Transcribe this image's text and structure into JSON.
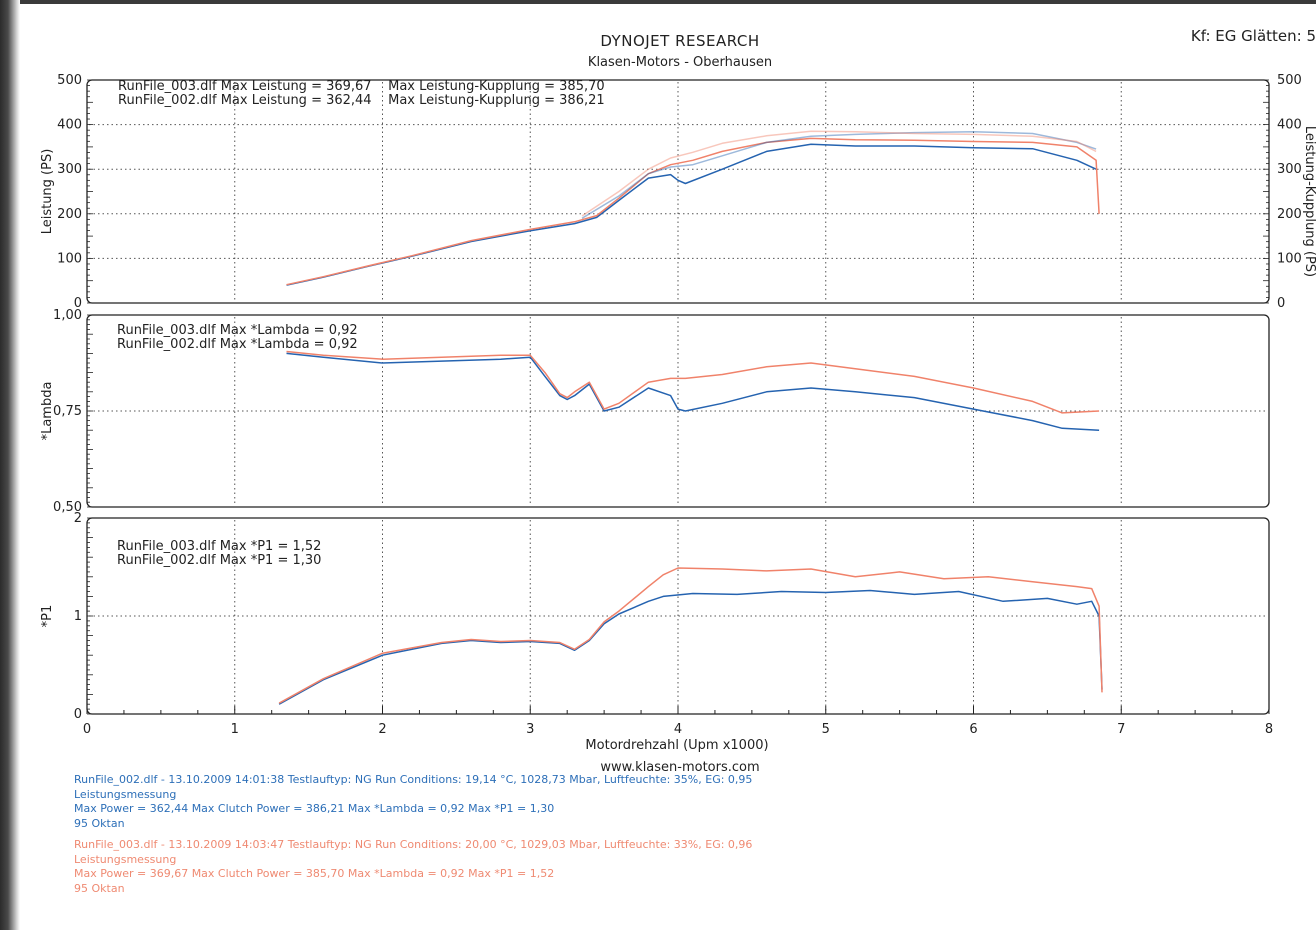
{
  "header": {
    "title": "DYNOJET RESEARCH",
    "subtitle": "Klasen-Motors - Oberhausen",
    "corner_label": "Kf: EG  Glätten: 5"
  },
  "website": "www.klasen-motors.com",
  "colors": {
    "run_002": "#2563b0",
    "run_003": "#f0826a",
    "grid": "#555555",
    "axis": "#222222"
  },
  "chart_data": [
    {
      "type": "line",
      "id": "power",
      "ylabel": "Leistung (PS)",
      "ylabel_right": "Leistung-Kupplung (PS)",
      "xlim": [
        0,
        8
      ],
      "ylim": [
        0,
        500
      ],
      "yticks": [
        {
          "v": 0,
          "label": "0"
        },
        {
          "v": 100,
          "label": "100"
        },
        {
          "v": 200,
          "label": "200"
        },
        {
          "v": 300,
          "label": "300"
        },
        {
          "v": 400,
          "label": "400"
        },
        {
          "v": 500,
          "label": "500"
        }
      ],
      "grid": true,
      "legend": [
        "RunFile_003.dlf Max Leistung = 369,67    Max Leistung-Kupplung = 385,70",
        "RunFile_002.dlf Max Leistung = 362,44    Max Leistung-Kupplung = 386,21"
      ],
      "series": [
        {
          "run": "002",
          "kind": "power",
          "color": "#2563b0",
          "x": [
            1.35,
            1.6,
            1.9,
            2.2,
            2.6,
            3.0,
            3.3,
            3.45,
            3.6,
            3.8,
            3.95,
            4.0,
            4.05,
            4.3,
            4.6,
            4.9,
            5.2,
            5.6,
            6.0,
            6.4,
            6.7,
            6.83
          ],
          "y": [
            40,
            58,
            82,
            105,
            138,
            162,
            178,
            192,
            230,
            280,
            288,
            275,
            268,
            300,
            340,
            356,
            352,
            352,
            348,
            346,
            320,
            300
          ]
        },
        {
          "run": "003",
          "kind": "power",
          "color": "#f0826a",
          "x": [
            1.35,
            1.6,
            1.9,
            2.2,
            2.6,
            3.0,
            3.3,
            3.45,
            3.6,
            3.8,
            3.95,
            4.1,
            4.3,
            4.6,
            4.9,
            5.2,
            5.6,
            6.0,
            6.4,
            6.7,
            6.83,
            6.85
          ],
          "y": [
            41,
            59,
            83,
            106,
            140,
            165,
            182,
            196,
            235,
            290,
            310,
            320,
            340,
            360,
            369,
            366,
            365,
            362,
            360,
            350,
            320,
            200
          ]
        },
        {
          "run": "002",
          "kind": "clutch",
          "color": "#2563b0",
          "opacity": 0.45,
          "x": [
            3.35,
            3.6,
            3.8,
            3.95,
            4.1,
            4.3,
            4.6,
            4.9,
            5.2,
            5.6,
            6.0,
            6.4,
            6.7,
            6.83
          ],
          "y": [
            190,
            240,
            290,
            305,
            310,
            330,
            360,
            374,
            378,
            382,
            384,
            380,
            360,
            345
          ]
        },
        {
          "run": "003",
          "kind": "clutch",
          "color": "#f0826a",
          "opacity": 0.45,
          "x": [
            3.35,
            3.6,
            3.8,
            3.95,
            4.1,
            4.3,
            4.6,
            4.9,
            5.2,
            5.6,
            6.0,
            6.4,
            6.7,
            6.83
          ],
          "y": [
            195,
            250,
            300,
            325,
            338,
            358,
            375,
            385,
            384,
            380,
            378,
            374,
            362,
            340
          ]
        }
      ]
    },
    {
      "type": "line",
      "id": "lambda",
      "ylabel": "*Lambda",
      "xlim": [
        0,
        8
      ],
      "ylim": [
        0.5,
        1.0
      ],
      "yticks": [
        {
          "v": 0.5,
          "label": "0,50"
        },
        {
          "v": 0.75,
          "label": "0,75"
        },
        {
          "v": 1.0,
          "label": "1,00"
        }
      ],
      "grid": true,
      "legend": [
        "RunFile_003.dlf Max *Lambda = 0,92",
        "RunFile_002.dlf Max *Lambda = 0,92"
      ],
      "series": [
        {
          "run": "002",
          "color": "#2563b0",
          "x": [
            1.35,
            1.6,
            2.0,
            2.4,
            2.8,
            3.0,
            3.1,
            3.2,
            3.25,
            3.3,
            3.4,
            3.5,
            3.6,
            3.8,
            3.95,
            4.0,
            4.05,
            4.3,
            4.6,
            4.9,
            5.2,
            5.6,
            6.0,
            6.4,
            6.6,
            6.85
          ],
          "y": [
            0.9,
            0.89,
            0.875,
            0.88,
            0.885,
            0.89,
            0.84,
            0.79,
            0.78,
            0.79,
            0.82,
            0.75,
            0.76,
            0.81,
            0.79,
            0.755,
            0.75,
            0.77,
            0.8,
            0.81,
            0.8,
            0.785,
            0.755,
            0.725,
            0.705,
            0.7
          ]
        },
        {
          "run": "003",
          "color": "#f0826a",
          "x": [
            1.35,
            1.6,
            2.0,
            2.4,
            2.8,
            3.0,
            3.1,
            3.2,
            3.25,
            3.3,
            3.4,
            3.5,
            3.6,
            3.8,
            3.95,
            4.05,
            4.3,
            4.6,
            4.9,
            5.2,
            5.6,
            6.0,
            6.4,
            6.6,
            6.85
          ],
          "y": [
            0.905,
            0.895,
            0.885,
            0.89,
            0.895,
            0.895,
            0.85,
            0.795,
            0.785,
            0.8,
            0.825,
            0.755,
            0.77,
            0.825,
            0.835,
            0.835,
            0.845,
            0.865,
            0.875,
            0.86,
            0.84,
            0.81,
            0.775,
            0.745,
            0.75
          ]
        }
      ]
    },
    {
      "type": "line",
      "id": "p1",
      "ylabel": "*P1",
      "xlabel": "Motordrehzahl (Upm x1000)",
      "xlim": [
        0,
        8
      ],
      "ylim": [
        0,
        2
      ],
      "xticks": [
        0,
        1,
        2,
        3,
        4,
        5,
        6,
        7,
        8
      ],
      "yticks": [
        {
          "v": 0,
          "label": "0"
        },
        {
          "v": 1,
          "label": "1"
        },
        {
          "v": 2,
          "label": "2"
        }
      ],
      "grid": true,
      "legend": [
        "RunFile_003.dlf Max *P1 = 1,52",
        "RunFile_002.dlf Max *P1 = 1,30"
      ],
      "series": [
        {
          "run": "002",
          "color": "#2563b0",
          "x": [
            1.3,
            1.6,
            2.0,
            2.4,
            2.6,
            2.8,
            3.0,
            3.2,
            3.3,
            3.4,
            3.5,
            3.6,
            3.8,
            3.9,
            4.1,
            4.4,
            4.7,
            5.0,
            5.3,
            5.6,
            5.9,
            6.2,
            6.5,
            6.7,
            6.8,
            6.85,
            6.87
          ],
          "y": [
            0.1,
            0.35,
            0.6,
            0.72,
            0.75,
            0.73,
            0.74,
            0.72,
            0.65,
            0.75,
            0.92,
            1.02,
            1.15,
            1.2,
            1.23,
            1.22,
            1.25,
            1.24,
            1.26,
            1.22,
            1.25,
            1.15,
            1.18,
            1.12,
            1.15,
            1.0,
            0.25
          ]
        },
        {
          "run": "003",
          "color": "#f0826a",
          "x": [
            1.3,
            1.6,
            2.0,
            2.4,
            2.6,
            2.8,
            3.0,
            3.2,
            3.3,
            3.4,
            3.5,
            3.6,
            3.8,
            3.9,
            4.0,
            4.3,
            4.6,
            4.9,
            5.2,
            5.5,
            5.8,
            6.1,
            6.4,
            6.7,
            6.8,
            6.85,
            6.87
          ],
          "y": [
            0.11,
            0.36,
            0.62,
            0.73,
            0.76,
            0.74,
            0.75,
            0.73,
            0.66,
            0.76,
            0.94,
            1.05,
            1.3,
            1.42,
            1.49,
            1.48,
            1.46,
            1.48,
            1.4,
            1.45,
            1.38,
            1.4,
            1.35,
            1.3,
            1.28,
            1.1,
            0.22
          ]
        }
      ]
    }
  ],
  "footer": {
    "run_002": [
      "RunFile_002.dlf - 13.10.2009 14:01:38  Testlauftyp: NG  Run Conditions: 19,14 °C, 1028,73 Mbar,  Luftfeuchte: 35%, EG: 0,95",
      "Leistungsmessung",
      "Max Power = 362,44  Max Clutch Power = 386,21  Max *Lambda = 0,92  Max *P1 = 1,30",
      "95 Oktan"
    ],
    "run_003": [
      "RunFile_003.dlf - 13.10.2009 14:03:47  Testlauftyp: NG  Run Conditions: 20,00 °C, 1029,03 Mbar,  Luftfeuchte: 33%, EG: 0,96",
      "Leistungsmessung",
      "Max Power = 369,67  Max Clutch Power = 385,70  Max *Lambda = 0,92  Max *P1 = 1,52",
      "95 Oktan"
    ]
  }
}
